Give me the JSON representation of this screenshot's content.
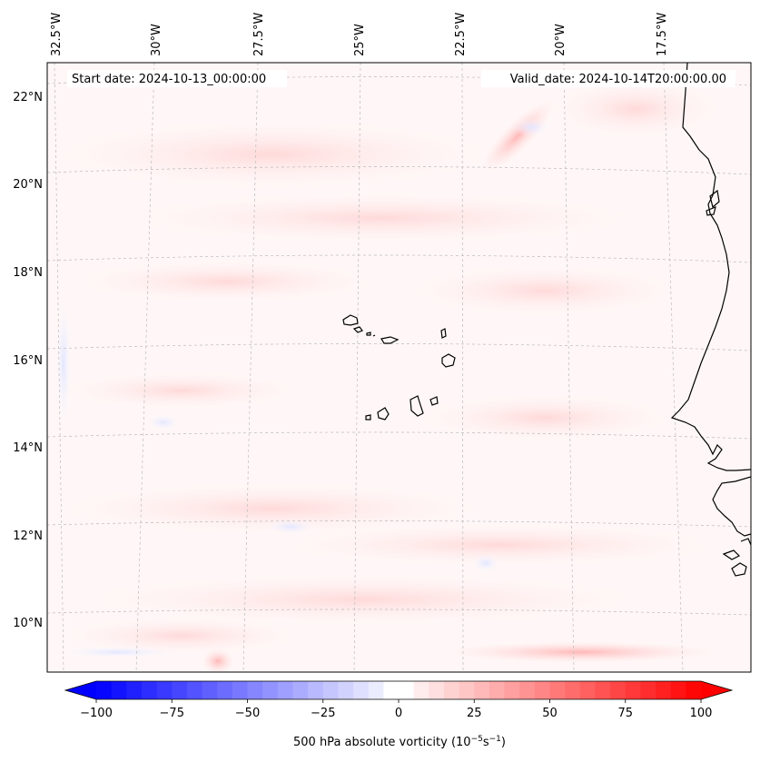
{
  "map": {
    "start_date_label": "Start date: 2024-10-13_00:00:00",
    "valid_date_label": "Valid_date: 2024-10-14T20:00:00.00",
    "lon_labels": [
      "32.5°W",
      "30°W",
      "27.5°W",
      "25°W",
      "22.5°W",
      "20°W",
      "17.5°W"
    ],
    "lat_labels": [
      "22°N",
      "20°N",
      "18°N",
      "16°N",
      "14°N",
      "12°N",
      "10°N"
    ]
  },
  "colorbar": {
    "ticks": [
      "−100",
      "−75",
      "−50",
      "−25",
      "0",
      "25",
      "50",
      "75",
      "100"
    ],
    "label_main": "500 hPa absolute vorticity (10",
    "label_exp1": "−5",
    "label_mid": "s",
    "label_exp2": "−1",
    "label_end": ")",
    "vmin": -100,
    "vmax": 100,
    "color_low": "#0000ff",
    "color_mid": "#ffffff",
    "color_high": "#ff0000"
  }
}
